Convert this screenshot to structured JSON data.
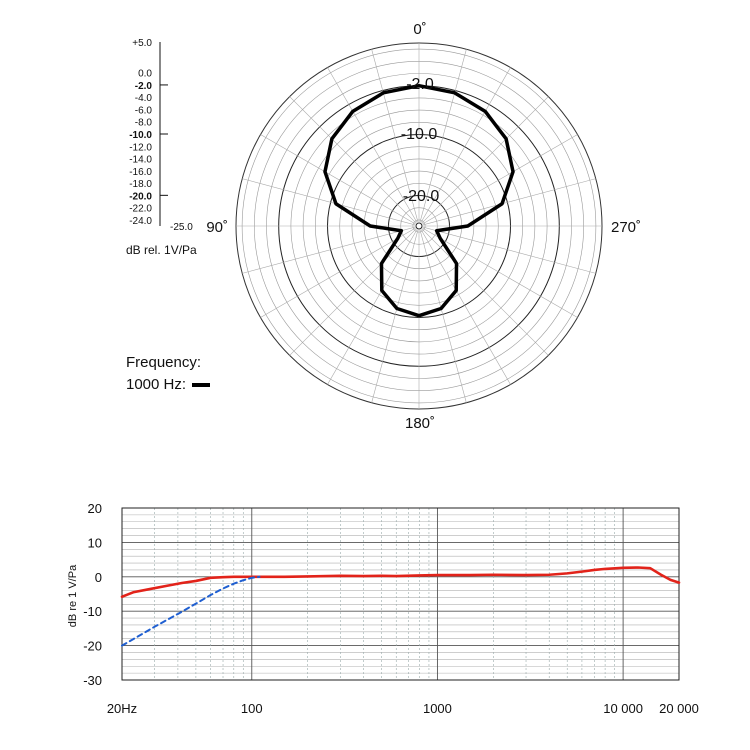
{
  "colors": {
    "pattern": "#000000",
    "grid": "#444444",
    "response": "#e2231a",
    "low_cut": "#1f5fd1"
  },
  "polar": {
    "scale_labels": [
      "+5.0",
      "0.0",
      "-2.0",
      "-4.0",
      "-6.0",
      "-8.0",
      "-10.0",
      "-12.0",
      "-14.0",
      "-16.0",
      "-18.0",
      "-20.0",
      "-22.0",
      "-24.0",
      "-25.0"
    ],
    "scale_bold": [
      "-2.0",
      "-10.0",
      "-20.0"
    ],
    "scale_values": [
      5,
      0,
      -2,
      -4,
      -6,
      -8,
      -10,
      -12,
      -14,
      -16,
      -18,
      -20,
      -22,
      -24,
      -25
    ],
    "unit_label": "dB rel. 1V/Pa",
    "angle_labels": {
      "top": "0˚",
      "left": "90˚",
      "right": "270˚",
      "bottom": "180˚"
    },
    "ring_labels": [
      "-2.0",
      "-10.0",
      "-20.0"
    ],
    "legend_title": "Frequency:",
    "legend_entry": "1000 Hz:"
  },
  "chart_data": [
    {
      "type": "polar",
      "title": "",
      "frequency_hz": 1000,
      "r_unit": "dB rel. 1V/Pa",
      "r_range": [
        -25,
        5
      ],
      "angle_deg": [
        0,
        15,
        30,
        45,
        60,
        75,
        90,
        105,
        120,
        135,
        150,
        165,
        180,
        195,
        210,
        225,
        240,
        255,
        270,
        285,
        300,
        315,
        330,
        345,
        360
      ],
      "level_db": [
        -2.0,
        -2.4,
        -3.3,
        -4.8,
        -7.2,
        -10.9,
        -17.0,
        -22.0,
        -21.0,
        -16.3,
        -12.8,
        -11.0,
        -10.3,
        -11.0,
        -12.8,
        -16.3,
        -21.0,
        -22.0,
        -17.0,
        -10.9,
        -7.2,
        -4.8,
        -3.3,
        -2.4,
        -2.0
      ]
    },
    {
      "type": "line",
      "title": "",
      "xlabel": "",
      "ylabel": "dB re 1 V/Pa",
      "xscale": "log",
      "xlim": [
        20,
        20000
      ],
      "ylim": [
        -30,
        20
      ],
      "x_ticks": [
        20,
        100,
        1000,
        10000,
        20000
      ],
      "x_tick_labels": [
        "20Hz",
        "100",
        "1000",
        "10 000",
        "20 000"
      ],
      "y_ticks": [
        20,
        10,
        0,
        -10,
        -20,
        -30
      ],
      "y_tick_labels": [
        "20",
        "10",
        "0",
        "-10",
        "-20",
        "-30"
      ],
      "series": [
        {
          "color": "#e2231a",
          "style": "solid",
          "x": [
            20,
            23,
            28,
            35,
            42,
            50,
            60,
            70,
            80,
            100,
            150,
            200,
            300,
            400,
            500,
            600,
            800,
            1000,
            1500,
            2000,
            3000,
            4000,
            5000,
            6000,
            7000,
            8000,
            10000,
            12000,
            14000,
            16000,
            18000,
            20000
          ],
          "y": [
            -5.8,
            -4.5,
            -3.6,
            -2.6,
            -1.8,
            -1.2,
            -0.3,
            -0.1,
            0.0,
            0.0,
            0.0,
            0.1,
            0.3,
            0.2,
            0.3,
            0.2,
            0.4,
            0.5,
            0.5,
            0.6,
            0.5,
            0.6,
            1.0,
            1.5,
            2.0,
            2.3,
            2.6,
            2.7,
            2.5,
            0.6,
            -0.9,
            -1.7
          ]
        },
        {
          "color": "#1f5fd1",
          "style": "dashed",
          "x": [
            20,
            25,
            30,
            40,
            50,
            60,
            70,
            80,
            90,
            100,
            110
          ],
          "y": [
            -20.0,
            -17.0,
            -14.5,
            -10.8,
            -7.8,
            -5.3,
            -3.4,
            -2.0,
            -1.0,
            -0.3,
            0.0
          ]
        }
      ]
    }
  ]
}
